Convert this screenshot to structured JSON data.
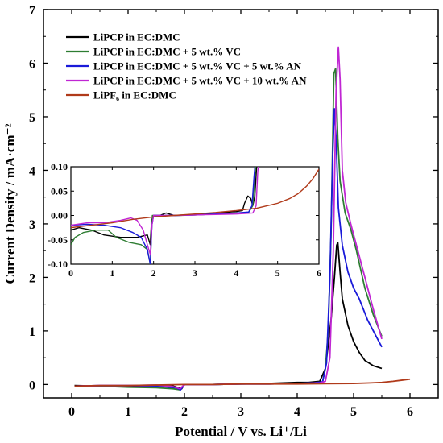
{
  "chart_data": {
    "type": "line",
    "xlabel": "Potential / V vs. Li⁺/Li",
    "ylabel": "Current Density / mA·cm⁻²",
    "xlim": [
      -0.5,
      6.5
    ],
    "ylim": [
      -0.25,
      7
    ],
    "xticks": [
      0,
      1,
      2,
      3,
      4,
      5,
      6
    ],
    "yticks": [
      0,
      1,
      2,
      3,
      4,
      5,
      6,
      7
    ],
    "grid": false,
    "legend_position": "top-left",
    "series": [
      {
        "name": "LiPCP in EC:DMC",
        "color": "#000000",
        "points": [
          [
            0.05,
            -0.02
          ],
          [
            0.5,
            -0.03
          ],
          [
            1.0,
            -0.04
          ],
          [
            1.5,
            -0.04
          ],
          [
            1.8,
            -0.03
          ],
          [
            1.95,
            -0.08
          ],
          [
            2.0,
            0.0
          ],
          [
            2.5,
            0.0
          ],
          [
            3.0,
            0.01
          ],
          [
            3.5,
            0.02
          ],
          [
            4.0,
            0.04
          ],
          [
            4.2,
            0.04
          ],
          [
            4.4,
            0.06
          ],
          [
            4.5,
            0.3
          ],
          [
            4.6,
            1.2
          ],
          [
            4.66,
            2.0
          ],
          [
            4.7,
            2.6
          ],
          [
            4.72,
            2.65
          ],
          [
            4.76,
            2.1
          ],
          [
            4.8,
            1.6
          ],
          [
            4.9,
            1.1
          ],
          [
            5.0,
            0.8
          ],
          [
            5.1,
            0.6
          ],
          [
            5.2,
            0.45
          ],
          [
            5.35,
            0.35
          ],
          [
            5.5,
            0.3
          ]
        ]
      },
      {
        "name": "LiPCP in EC:DMC + 5 wt.% VC",
        "color": "#2e7d32",
        "points": [
          [
            0.05,
            -0.04
          ],
          [
            0.5,
            -0.03
          ],
          [
            1.0,
            -0.05
          ],
          [
            1.5,
            -0.06
          ],
          [
            1.8,
            -0.08
          ],
          [
            1.92,
            -0.1
          ],
          [
            2.0,
            0.0
          ],
          [
            2.5,
            0.0
          ],
          [
            3.0,
            0.01
          ],
          [
            3.5,
            0.01
          ],
          [
            4.0,
            0.02
          ],
          [
            4.3,
            0.03
          ],
          [
            4.45,
            0.05
          ],
          [
            4.5,
            0.3
          ],
          [
            4.55,
            1.0
          ],
          [
            4.6,
            2.8
          ],
          [
            4.65,
            5.8
          ],
          [
            4.68,
            5.9
          ],
          [
            4.72,
            4.6
          ],
          [
            4.76,
            3.8
          ],
          [
            4.85,
            3.2
          ],
          [
            4.95,
            2.9
          ],
          [
            5.05,
            2.5
          ],
          [
            5.2,
            1.8
          ],
          [
            5.35,
            1.3
          ],
          [
            5.5,
            0.9
          ]
        ]
      },
      {
        "name": "LiPCP in EC:DMC + 5  wt.% VC + 5  wt.% AN",
        "color": "#1a1ad9",
        "points": [
          [
            0.05,
            -0.03
          ],
          [
            0.5,
            -0.02
          ],
          [
            1.0,
            -0.02
          ],
          [
            1.5,
            -0.03
          ],
          [
            1.85,
            -0.06
          ],
          [
            1.93,
            -0.1
          ],
          [
            2.0,
            0.0
          ],
          [
            2.5,
            0.0
          ],
          [
            3.0,
            0.01
          ],
          [
            3.5,
            0.01
          ],
          [
            4.0,
            0.02
          ],
          [
            4.3,
            0.03
          ],
          [
            4.45,
            0.05
          ],
          [
            4.52,
            0.4
          ],
          [
            4.58,
            2.0
          ],
          [
            4.63,
            4.3
          ],
          [
            4.66,
            5.15
          ],
          [
            4.69,
            4.6
          ],
          [
            4.73,
            3.3
          ],
          [
            4.8,
            2.6
          ],
          [
            4.9,
            2.1
          ],
          [
            5.0,
            1.8
          ],
          [
            5.1,
            1.6
          ],
          [
            5.25,
            1.2
          ],
          [
            5.4,
            0.9
          ],
          [
            5.5,
            0.7
          ]
        ]
      },
      {
        "name": "LiPCP in EC:DMC + 5 wt.% VC + 10  wt.% AN",
        "color": "#c026d3",
        "points": [
          [
            0.05,
            -0.03
          ],
          [
            0.5,
            -0.02
          ],
          [
            1.0,
            -0.02
          ],
          [
            1.5,
            -0.01
          ],
          [
            1.8,
            -0.04
          ],
          [
            1.92,
            -0.08
          ],
          [
            2.0,
            0.0
          ],
          [
            2.5,
            0.0
          ],
          [
            3.0,
            0.01
          ],
          [
            3.5,
            0.01
          ],
          [
            4.0,
            0.02
          ],
          [
            4.4,
            0.03
          ],
          [
            4.5,
            0.06
          ],
          [
            4.58,
            0.5
          ],
          [
            4.64,
            2.5
          ],
          [
            4.69,
            5.5
          ],
          [
            4.73,
            6.3
          ],
          [
            4.76,
            5.7
          ],
          [
            4.8,
            4.0
          ],
          [
            4.86,
            3.4
          ],
          [
            4.95,
            3.0
          ],
          [
            5.05,
            2.6
          ],
          [
            5.2,
            2.0
          ],
          [
            5.35,
            1.4
          ],
          [
            5.5,
            0.85
          ]
        ]
      },
      {
        "name": "LiPF₆ in EC:DMC",
        "color": "#b03a1a",
        "points": [
          [
            0.05,
            -0.03
          ],
          [
            0.5,
            -0.02
          ],
          [
            1.0,
            -0.02
          ],
          [
            1.5,
            -0.01
          ],
          [
            2.0,
            0.0
          ],
          [
            2.5,
            0.0
          ],
          [
            3.0,
            0.01
          ],
          [
            3.5,
            0.01
          ],
          [
            4.0,
            0.01
          ],
          [
            4.5,
            0.015
          ],
          [
            5.0,
            0.02
          ],
          [
            5.3,
            0.03
          ],
          [
            5.5,
            0.04
          ],
          [
            5.7,
            0.06
          ],
          [
            5.85,
            0.08
          ],
          [
            6.0,
            0.1
          ]
        ]
      }
    ],
    "inset": {
      "xlim": [
        0,
        6
      ],
      "ylim": [
        -0.1,
        0.1
      ],
      "xticks": [
        0,
        1,
        2,
        3,
        4,
        5,
        6
      ],
      "yticks": [
        0.1,
        0.05,
        0.0,
        -0.05,
        -0.1
      ],
      "yticklabels": [
        "0.10",
        "0.05",
        "0.00",
        "-0.05",
        "-0.10"
      ],
      "series": [
        {
          "name": "LiPCP in EC:DMC",
          "color": "#000000",
          "points": [
            [
              0.0,
              -0.03
            ],
            [
              0.2,
              -0.025
            ],
            [
              0.5,
              -0.03
            ],
            [
              0.8,
              -0.04
            ],
            [
              1.2,
              -0.045
            ],
            [
              1.6,
              -0.045
            ],
            [
              1.85,
              -0.04
            ],
            [
              1.92,
              -0.06
            ],
            [
              1.95,
              -0.01
            ],
            [
              2.0,
              0.0
            ],
            [
              2.15,
              0.0
            ],
            [
              2.3,
              0.005
            ],
            [
              2.5,
              0.0
            ],
            [
              3.0,
              0.002
            ],
            [
              3.5,
              0.005
            ],
            [
              4.0,
              0.008
            ],
            [
              4.15,
              0.01
            ],
            [
              4.2,
              0.025
            ],
            [
              4.28,
              0.04
            ],
            [
              4.35,
              0.035
            ],
            [
              4.4,
              0.02
            ],
            [
              4.45,
              0.04
            ],
            [
              4.5,
              0.11
            ]
          ]
        },
        {
          "name": "LiPCP in EC:DMC + 5 wt.% VC",
          "color": "#2e7d32",
          "points": [
            [
              0.0,
              -0.06
            ],
            [
              0.1,
              -0.045
            ],
            [
              0.3,
              -0.035
            ],
            [
              0.6,
              -0.03
            ],
            [
              0.9,
              -0.03
            ],
            [
              1.1,
              -0.045
            ],
            [
              1.4,
              -0.055
            ],
            [
              1.7,
              -0.06
            ],
            [
              1.85,
              -0.07
            ],
            [
              1.92,
              -0.1
            ],
            [
              1.97,
              0.0
            ],
            [
              2.2,
              0.0
            ],
            [
              2.6,
              0.0
            ],
            [
              3.0,
              0.001
            ],
            [
              3.5,
              0.003
            ],
            [
              4.0,
              0.005
            ],
            [
              4.3,
              0.006
            ],
            [
              4.4,
              0.02
            ],
            [
              4.45,
              0.08
            ],
            [
              4.48,
              0.11
            ]
          ]
        },
        {
          "name": "LiPCP in EC:DMC + 5  wt.% VC + 5  wt.% AN",
          "color": "#1a1ad9",
          "points": [
            [
              0.0,
              -0.02
            ],
            [
              0.4,
              -0.018
            ],
            [
              0.8,
              -0.02
            ],
            [
              1.2,
              -0.025
            ],
            [
              1.5,
              -0.035
            ],
            [
              1.7,
              -0.045
            ],
            [
              1.85,
              -0.07
            ],
            [
              1.92,
              -0.1
            ],
            [
              1.96,
              -0.02
            ],
            [
              2.0,
              0.0
            ],
            [
              2.5,
              0.0
            ],
            [
              3.0,
              0.001
            ],
            [
              3.5,
              0.003
            ],
            [
              4.0,
              0.005
            ],
            [
              4.3,
              0.007
            ],
            [
              4.38,
              0.02
            ],
            [
              4.43,
              0.08
            ],
            [
              4.46,
              0.11
            ]
          ]
        },
        {
          "name": "LiPCP in EC:DMC + 5 wt.% VC + 10  wt.% AN",
          "color": "#c026d3",
          "points": [
            [
              0.0,
              -0.02
            ],
            [
              0.4,
              -0.015
            ],
            [
              0.8,
              -0.015
            ],
            [
              1.2,
              -0.01
            ],
            [
              1.45,
              -0.005
            ],
            [
              1.6,
              -0.01
            ],
            [
              1.75,
              -0.03
            ],
            [
              1.85,
              -0.06
            ],
            [
              1.92,
              -0.08
            ],
            [
              1.96,
              -0.02
            ],
            [
              2.0,
              0.0
            ],
            [
              2.5,
              0.0
            ],
            [
              3.0,
              0.001
            ],
            [
              3.5,
              0.002
            ],
            [
              4.0,
              0.003
            ],
            [
              4.4,
              0.005
            ],
            [
              4.48,
              0.02
            ],
            [
              4.52,
              0.09
            ],
            [
              4.55,
              0.11
            ]
          ]
        },
        {
          "name": "LiPF₆ in EC:DMC",
          "color": "#b03a1a",
          "points": [
            [
              0.0,
              -0.025
            ],
            [
              0.5,
              -0.02
            ],
            [
              1.0,
              -0.015
            ],
            [
              1.5,
              -0.008
            ],
            [
              2.0,
              -0.003
            ],
            [
              2.5,
              0.0
            ],
            [
              3.0,
              0.003
            ],
            [
              3.5,
              0.006
            ],
            [
              4.0,
              0.01
            ],
            [
              4.5,
              0.015
            ],
            [
              5.0,
              0.025
            ],
            [
              5.3,
              0.035
            ],
            [
              5.5,
              0.045
            ],
            [
              5.7,
              0.06
            ],
            [
              5.85,
              0.075
            ],
            [
              6.0,
              0.095
            ]
          ]
        }
      ]
    }
  }
}
